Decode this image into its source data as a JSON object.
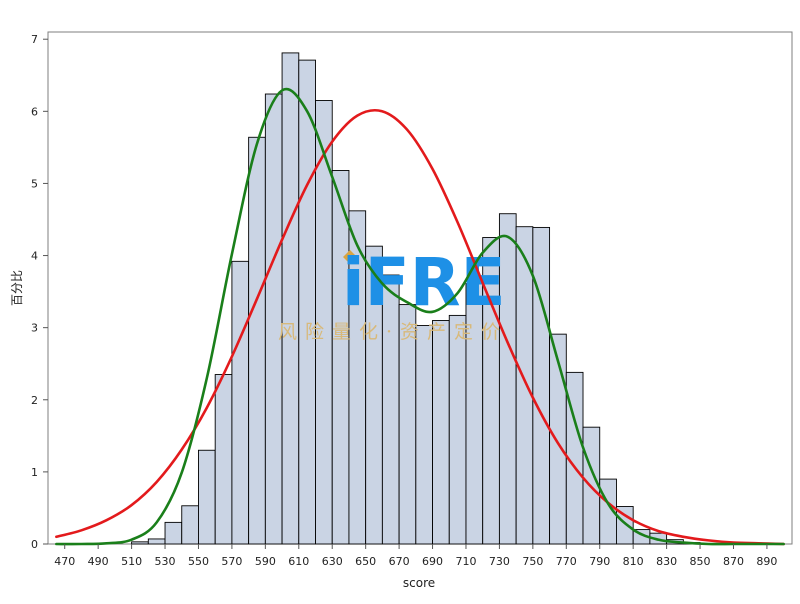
{
  "chart_data": {
    "type": "bar",
    "subtype": "histogram-with-density-curves",
    "xlabel": "score",
    "ylabel": "百分比",
    "xlim": [
      460,
      905
    ],
    "ylim": [
      0,
      7.1
    ],
    "x_ticks": [
      470,
      490,
      510,
      530,
      550,
      570,
      590,
      610,
      630,
      650,
      670,
      690,
      710,
      730,
      750,
      770,
      790,
      810,
      830,
      850,
      870,
      890
    ],
    "y_ticks": [
      0,
      1,
      2,
      3,
      4,
      5,
      6,
      7
    ],
    "bin_width": 10,
    "bin_centers": [
      505,
      515,
      525,
      535,
      545,
      555,
      565,
      575,
      585,
      595,
      605,
      615,
      625,
      635,
      645,
      655,
      665,
      675,
      685,
      695,
      705,
      715,
      725,
      735,
      745,
      755,
      765,
      775,
      785,
      795,
      805,
      815,
      825,
      835,
      845
    ],
    "values": [
      0.0,
      0.03,
      0.07,
      0.3,
      0.53,
      1.3,
      2.35,
      3.92,
      5.64,
      6.24,
      6.81,
      6.71,
      6.15,
      5.18,
      4.62,
      4.13,
      3.73,
      3.32,
      3.03,
      3.1,
      3.17,
      3.61,
      4.25,
      4.58,
      4.4,
      4.39,
      2.91,
      2.38,
      1.62,
      0.9,
      0.52,
      0.2,
      0.15,
      0.06,
      0.02
    ],
    "series": [
      {
        "type": "line",
        "color": "#e31a1c",
        "x": [
          465,
          480,
          495,
          510,
          525,
          540,
          555,
          570,
          585,
          600,
          615,
          630,
          645,
          660,
          675,
          690,
          705,
          720,
          735,
          750,
          765,
          780,
          795,
          810,
          825,
          840,
          855,
          870,
          885,
          900
        ],
        "values": [
          0.1,
          0.19,
          0.33,
          0.54,
          0.86,
          1.31,
          1.89,
          2.6,
          3.4,
          4.22,
          4.98,
          5.58,
          5.94,
          6.0,
          5.74,
          5.2,
          4.46,
          3.62,
          2.79,
          2.03,
          1.4,
          0.92,
          0.57,
          0.33,
          0.18,
          0.1,
          0.05,
          0.02,
          0.01,
          0.0
        ]
      },
      {
        "type": "line",
        "color": "#1a7f1a",
        "x": [
          465,
          480,
          495,
          510,
          525,
          540,
          555,
          570,
          585,
          600,
          615,
          630,
          645,
          660,
          675,
          690,
          705,
          720,
          735,
          750,
          765,
          780,
          795,
          810,
          825,
          840,
          855,
          870,
          885,
          900
        ],
        "values": [
          0.0,
          0.0,
          0.01,
          0.06,
          0.3,
          0.99,
          2.3,
          4.02,
          5.55,
          6.29,
          6.0,
          5.09,
          4.14,
          3.61,
          3.35,
          3.22,
          3.48,
          4.04,
          4.26,
          3.72,
          2.54,
          1.34,
          0.56,
          0.2,
          0.06,
          0.02,
          0.0,
          0.0,
          0.0,
          0.0
        ]
      }
    ],
    "watermark": {
      "logo": "iFRE",
      "tagline": "风险量化·资产定价"
    }
  }
}
